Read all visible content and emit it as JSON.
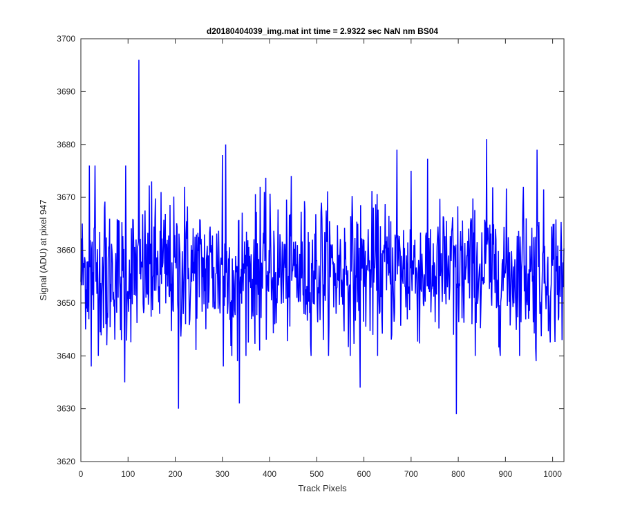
{
  "chart_data": {
    "type": "line",
    "title": "d20180404039_img.mat int time = 2.9322 sec  NaN nm BS04",
    "xlabel": "Track Pixels",
    "ylabel": "Signal (ADU) at pixel 947",
    "xlim": [
      0,
      1024
    ],
    "ylim": [
      3620,
      3700
    ],
    "xticks": [
      0,
      100,
      200,
      300,
      400,
      500,
      600,
      700,
      800,
      900,
      1000
    ],
    "yticks": [
      3620,
      3630,
      3640,
      3650,
      3660,
      3670,
      3680,
      3690,
      3700
    ],
    "grid": false,
    "legend": "none",
    "line_color": "#0000ff",
    "series": [
      {
        "sample_step": 1,
        "mean": 3656,
        "std": 6.5,
        "values_highlighted": [
          {
            "x": 10,
            "y": 3645
          },
          {
            "x": 18,
            "y": 3676
          },
          {
            "x": 22,
            "y": 3638
          },
          {
            "x": 30,
            "y": 3676
          },
          {
            "x": 50,
            "y": 3668
          },
          {
            "x": 53,
            "y": 3646
          },
          {
            "x": 55,
            "y": 3642
          },
          {
            "x": 86,
            "y": 3643
          },
          {
            "x": 93,
            "y": 3635
          },
          {
            "x": 95,
            "y": 3676
          },
          {
            "x": 123,
            "y": 3696
          },
          {
            "x": 150,
            "y": 3673
          },
          {
            "x": 170,
            "y": 3671
          },
          {
            "x": 207,
            "y": 3630
          },
          {
            "x": 220,
            "y": 3672
          },
          {
            "x": 300,
            "y": 3678
          },
          {
            "x": 302,
            "y": 3638
          },
          {
            "x": 307,
            "y": 3680
          },
          {
            "x": 320,
            "y": 3640
          },
          {
            "x": 322,
            "y": 3648
          },
          {
            "x": 332,
            "y": 3639
          },
          {
            "x": 336,
            "y": 3631
          },
          {
            "x": 380,
            "y": 3672
          },
          {
            "x": 510,
            "y": 3669
          },
          {
            "x": 592,
            "y": 3634
          },
          {
            "x": 670,
            "y": 3679
          },
          {
            "x": 700,
            "y": 3675
          },
          {
            "x": 790,
            "y": 3644
          },
          {
            "x": 796,
            "y": 3629
          },
          {
            "x": 860,
            "y": 3681
          },
          {
            "x": 938,
            "y": 3672
          },
          {
            "x": 965,
            "y": 3639
          },
          {
            "x": 967,
            "y": 3679
          },
          {
            "x": 1020,
            "y": 3643
          }
        ]
      }
    ]
  }
}
